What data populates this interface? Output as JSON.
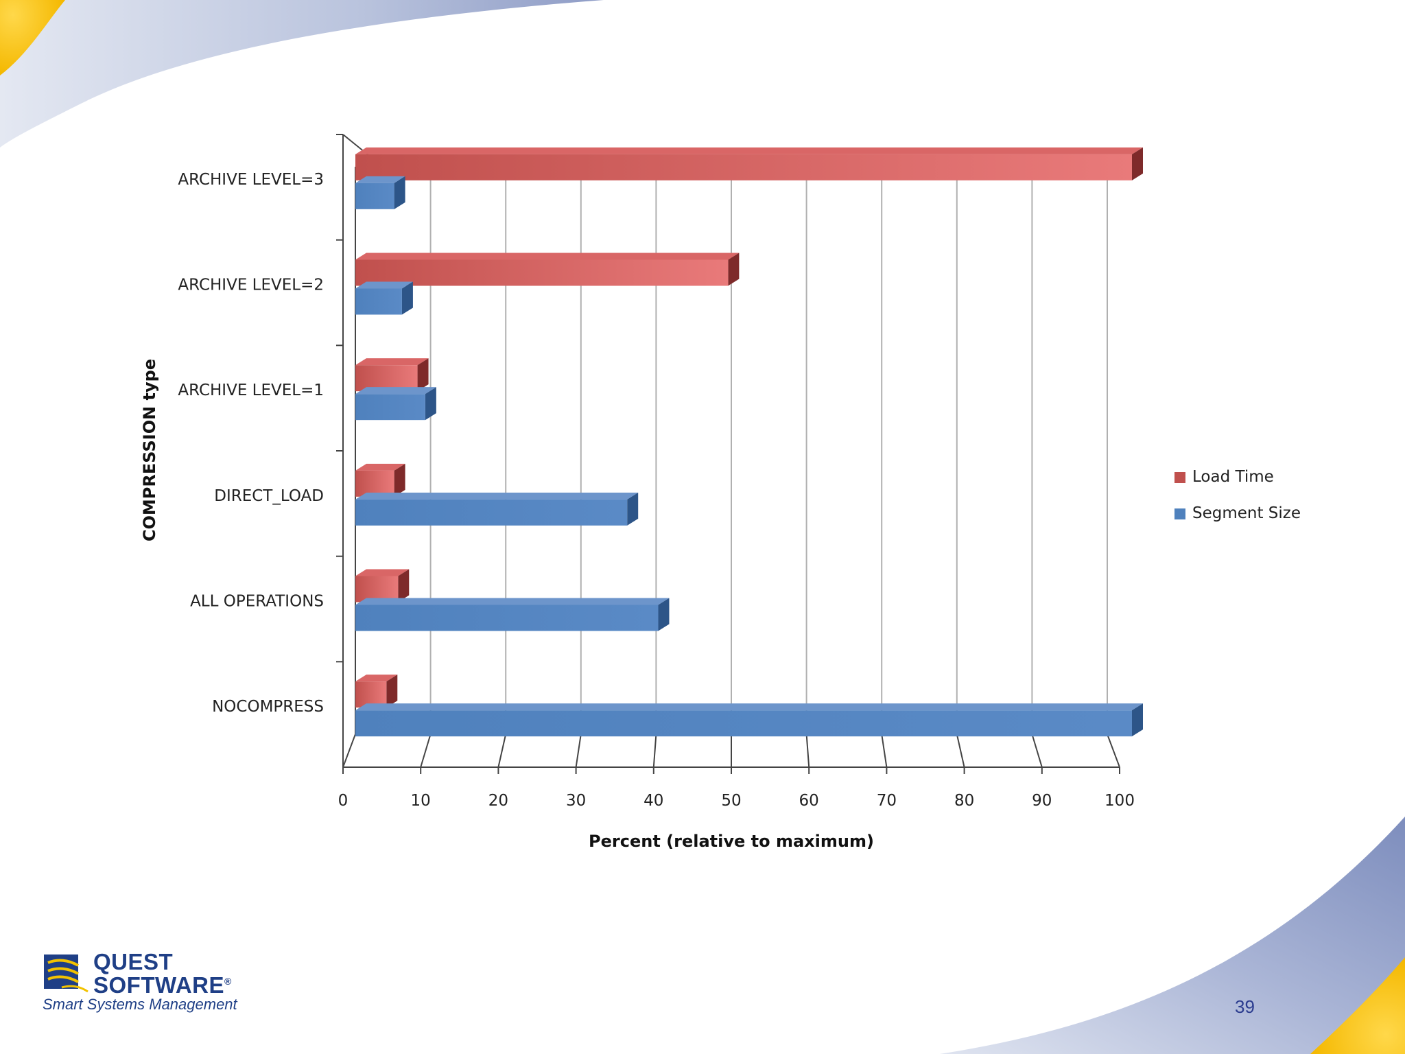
{
  "slide": {
    "page_number": "39",
    "logo": {
      "line1": "QUEST",
      "line2": "SOFTWARE",
      "registered_mark": "®",
      "tagline": "Smart Systems Management"
    }
  },
  "chart_data": {
    "type": "bar",
    "orientation": "horizontal",
    "style": "3d-clustered",
    "categories": [
      "ARCHIVE LEVEL=3",
      "ARCHIVE LEVEL=2",
      "ARCHIVE LEVEL=1",
      "DIRECT_LOAD",
      "ALL OPERATIONS",
      "NOCOMPRESS"
    ],
    "series": [
      {
        "name": "Load Time",
        "color": "#c0504d",
        "values": [
          100,
          48,
          8,
          5,
          5.5,
          4
        ]
      },
      {
        "name": "Segment Size",
        "color": "#4f81bd",
        "values": [
          5,
          6,
          9,
          35,
          39,
          100
        ]
      }
    ],
    "xlabel": "Percent (relative to maximum)",
    "ylabel": "COMPRESSION type",
    "xlim": [
      0,
      100
    ],
    "xticks": [
      "0",
      "10",
      "20",
      "30",
      "40",
      "50",
      "60",
      "70",
      "80",
      "90",
      "100"
    ],
    "grid": true,
    "legend_position": "right"
  }
}
